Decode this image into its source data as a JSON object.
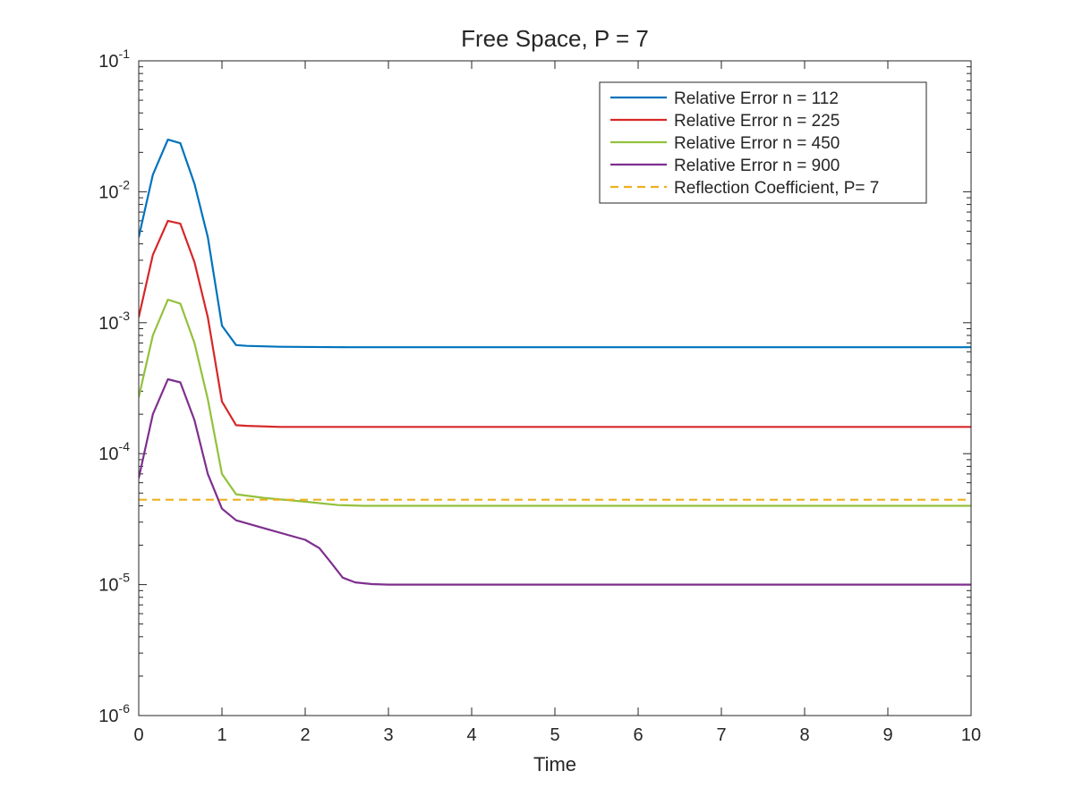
{
  "chart_data": {
    "type": "line",
    "title": "Free Space, P = 7",
    "xlabel": "Time",
    "ylabel": "",
    "xlim": [
      0,
      10
    ],
    "ylim": [
      1e-06,
      0.1
    ],
    "yscale": "log",
    "grid": false,
    "legend_position": "top-right",
    "x_ticks": [
      "0",
      "1",
      "2",
      "3",
      "4",
      "5",
      "6",
      "7",
      "8",
      "9",
      "10"
    ],
    "y_ticks": [
      {
        "base": "10",
        "exp": "-6",
        "value": 1e-06
      },
      {
        "base": "10",
        "exp": "-5",
        "value": 1e-05
      },
      {
        "base": "10",
        "exp": "-4",
        "value": 0.0001
      },
      {
        "base": "10",
        "exp": "-3",
        "value": 0.001
      },
      {
        "base": "10",
        "exp": "-2",
        "value": 0.01
      },
      {
        "base": "10",
        "exp": "-1",
        "value": 0.1
      }
    ],
    "series": [
      {
        "name": "Relative Error n = 112",
        "color": "#0072BD",
        "dash": false,
        "x": [
          0,
          0.17,
          0.35,
          0.5,
          0.67,
          0.83,
          1.0,
          1.17,
          1.3,
          1.7,
          2.5,
          4,
          6,
          8,
          10
        ],
        "y": [
          0.0045,
          0.0135,
          0.025,
          0.0235,
          0.0115,
          0.0045,
          0.00095,
          0.000675,
          0.000665,
          0.000655,
          0.00065,
          0.00065,
          0.00065,
          0.00065,
          0.00065
        ]
      },
      {
        "name": "Relative Error n = 225",
        "color": "#D62728",
        "dash": false,
        "x": [
          0,
          0.17,
          0.35,
          0.5,
          0.67,
          0.83,
          1.0,
          1.17,
          1.3,
          1.7,
          2.5,
          4,
          6,
          8,
          10
        ],
        "y": [
          0.0011,
          0.0033,
          0.006,
          0.0057,
          0.0029,
          0.0011,
          0.00025,
          0.000165,
          0.000163,
          0.00016,
          0.00016,
          0.00016,
          0.00016,
          0.00016,
          0.00016
        ]
      },
      {
        "name": "Relative Error n = 450",
        "color": "#92C13C",
        "dash": false,
        "x": [
          0,
          0.17,
          0.35,
          0.5,
          0.67,
          0.83,
          1.0,
          1.17,
          1.5,
          2.0,
          2.4,
          2.7,
          3.0,
          4,
          6,
          8,
          10
        ],
        "y": [
          0.00027,
          0.0008,
          0.0015,
          0.0014,
          0.0007,
          0.00026,
          7e-05,
          4.9e-05,
          4.6e-05,
          4.3e-05,
          4.05e-05,
          4e-05,
          4e-05,
          4e-05,
          4e-05,
          4e-05,
          4e-05
        ]
      },
      {
        "name": "Relative Error n = 900",
        "color": "#7E2F8E",
        "dash": false,
        "x": [
          0,
          0.17,
          0.35,
          0.5,
          0.67,
          0.83,
          1.0,
          1.17,
          1.5,
          2.0,
          2.17,
          2.3,
          2.45,
          2.6,
          2.8,
          3.0,
          4,
          6,
          8,
          10
        ],
        "y": [
          6.5e-05,
          0.0002,
          0.00037,
          0.00035,
          0.00018,
          7e-05,
          3.8e-05,
          3.1e-05,
          2.7e-05,
          2.2e-05,
          1.9e-05,
          1.5e-05,
          1.13e-05,
          1.04e-05,
          1.01e-05,
          1e-05,
          1e-05,
          1e-05,
          1e-05,
          1e-05
        ]
      },
      {
        "name": "Reflection Coefficient, P= 7",
        "color": "#EDB120",
        "dash": true,
        "x": [
          0,
          10
        ],
        "y": [
          4.45e-05,
          4.45e-05
        ]
      }
    ]
  }
}
